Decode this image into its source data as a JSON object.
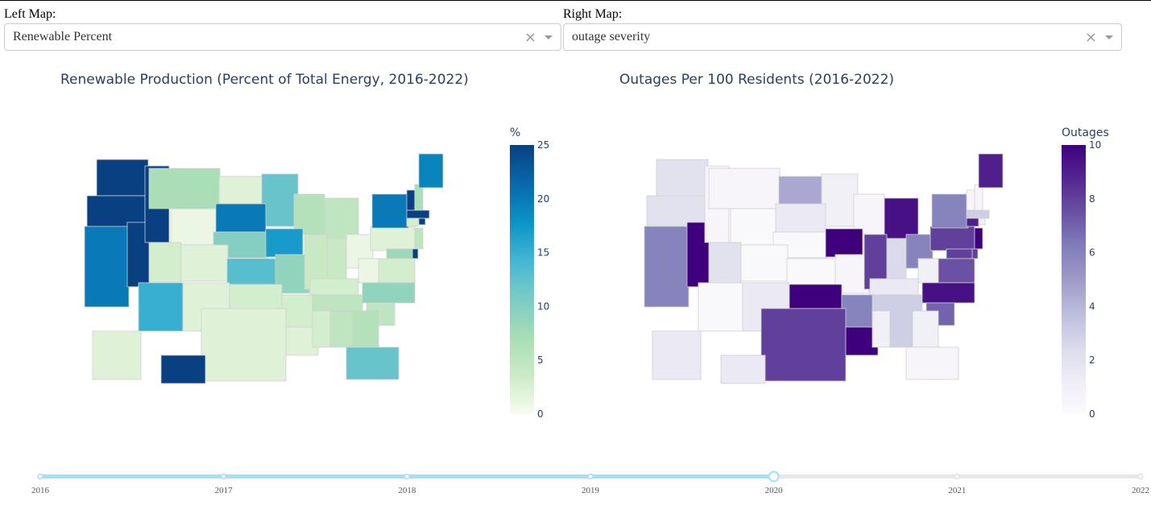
{
  "left": {
    "label": "Left Map:",
    "selected": "Renewable Percent",
    "clear_icon": "×",
    "title": "Renewable Production (Percent of Total Energy, 2016-2022)",
    "colorbar_title": "%",
    "colorbar_ticks": [
      0,
      5,
      10,
      15,
      20,
      25
    ],
    "range": [
      0,
      25
    ],
    "colorscale": [
      "#f7fcf0",
      "#ccebc5",
      "#a8ddb5",
      "#7bccc4",
      "#43b6d4",
      "#0a93c7",
      "#0868ac",
      "#084081"
    ],
    "values": {
      "WA": 25,
      "OR": 25,
      "ID": 25,
      "NV": 25,
      "CA": 20,
      "AZ": 15,
      "MT": 7,
      "ND": 2,
      "SD": 20,
      "MN": 12,
      "WI": 6,
      "MI": 5,
      "WY": 1,
      "UT": 3,
      "CO": 2,
      "NE": 10,
      "IA": 17,
      "KS": 13,
      "MO": 9,
      "IL": 4,
      "IN": 4,
      "OH": 1,
      "PA": 2,
      "NY": 20,
      "VT": 25,
      "NH": 7,
      "ME": 19,
      "MA": 25,
      "CT": 3,
      "RI": 25,
      "NJ": 5,
      "DE": 25,
      "MD": 8,
      "WV": 1,
      "VA": 3,
      "NC": 9,
      "SC": 5,
      "GA": 6,
      "AL": 5,
      "MS": 3,
      "LA": 2,
      "AR": 3,
      "TN": 5,
      "KY": 3,
      "OK": 3,
      "TX": 2,
      "NM": 2,
      "FL": 12,
      "AK": 2,
      "HI": 25
    }
  },
  "right": {
    "label": "Right Map:",
    "selected": "outage severity",
    "clear_icon": "×",
    "title": "Outages Per 100 Residents (2016-2022)",
    "colorbar_title": "Outages",
    "colorbar_ticks": [
      0,
      2,
      4,
      6,
      8,
      10
    ],
    "range": [
      0,
      10
    ],
    "colorscale": [
      "#fcfbfd",
      "#efedf5",
      "#dadaeb",
      "#bcbddc",
      "#9e9ac8",
      "#807dba",
      "#6a51a3",
      "#54278f",
      "#3f007d"
    ],
    "values": {
      "WA": 2,
      "OR": 2,
      "CA": 6,
      "NV": 10,
      "ID": 0.5,
      "MT": 0.5,
      "ND": 4.5,
      "SD": 1.5,
      "MN": 1,
      "WI": 0.5,
      "MI": 9.5,
      "WY": 0.3,
      "UT": 2,
      "CO": 0.3,
      "NE": 0.3,
      "IA": 10,
      "KS": 0.3,
      "MO": 0.5,
      "IL": 8,
      "IN": 2.5,
      "OH": 6,
      "PA": 8,
      "NY": 6,
      "VT": 0.5,
      "NH": 0.5,
      "ME": 9,
      "MA": 3,
      "CT": 9,
      "RI": 1,
      "NJ": 10,
      "DE": 8,
      "MD": 8,
      "WV": 1,
      "VA": 7.5,
      "NC": 9.5,
      "SC": 7,
      "GA": 1,
      "AL": 3,
      "MS": 1,
      "LA": 10,
      "AR": 6,
      "TN": 3,
      "KY": 1.5,
      "OK": 10,
      "TX": 8,
      "NM": 1.5,
      "AZ": 0.3,
      "FL": 0.5,
      "AK": 1.5,
      "HI": 1.5
    }
  },
  "slider": {
    "years": [
      "2016",
      "2017",
      "2018",
      "2019",
      "2020",
      "2021",
      "2022"
    ],
    "selected": "2020",
    "active_color": "#a0e0fa",
    "inactive_color": "#e8e8e8"
  }
}
